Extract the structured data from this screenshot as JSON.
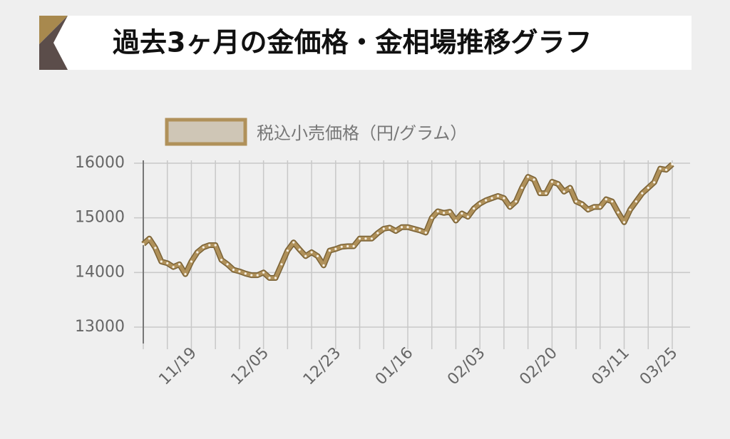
{
  "chart_data": {
    "type": "line",
    "title": "過去3ヶ月の金価格・金相場推移グラフ",
    "categories": [
      null,
      null,
      null,
      null,
      null,
      null,
      null,
      null,
      "11/19",
      null,
      null,
      null,
      null,
      null,
      null,
      null,
      null,
      null,
      null,
      null,
      "12/05",
      null,
      null,
      null,
      null,
      null,
      null,
      null,
      null,
      null,
      null,
      null,
      "12/23",
      null,
      null,
      null,
      null,
      null,
      null,
      null,
      null,
      null,
      null,
      null,
      "01/16",
      null,
      null,
      null,
      null,
      null,
      null,
      null,
      null,
      null,
      null,
      null,
      "02/03",
      null,
      null,
      null,
      null,
      null,
      null,
      null,
      null,
      null,
      null,
      null,
      "02/20",
      null,
      null,
      null,
      null,
      null,
      null,
      null,
      null,
      null,
      null,
      null,
      "03/11",
      null,
      null,
      null,
      null,
      null,
      null,
      null,
      "03/25"
    ],
    "series": [
      {
        "name": "税込小売価格（円/グラム）",
        "color": "#b0915a",
        "values": [
          14520,
          14620,
          14450,
          14200,
          14170,
          14100,
          14150,
          13970,
          14200,
          14370,
          14460,
          14500,
          14500,
          14230,
          14150,
          14050,
          14020,
          13980,
          13950,
          13950,
          14000,
          13900,
          13900,
          14150,
          14400,
          14550,
          14420,
          14300,
          14370,
          14300,
          14130,
          14400,
          14430,
          14470,
          14480,
          14480,
          14620,
          14620,
          14620,
          14720,
          14800,
          14820,
          14760,
          14830,
          14830,
          14800,
          14770,
          14730,
          15000,
          15120,
          15090,
          15110,
          14950,
          15080,
          15020,
          15170,
          15260,
          15320,
          15360,
          15400,
          15360,
          15200,
          15300,
          15550,
          15750,
          15700,
          15450,
          15450,
          15660,
          15620,
          15480,
          15550,
          15300,
          15250,
          15150,
          15200,
          15200,
          15340,
          15300,
          15100,
          14920,
          15150,
          15300,
          15450,
          15550,
          15650,
          15900,
          15880,
          15980
        ]
      }
    ],
    "ylim": [
      12700,
      16000
    ],
    "yticks": [
      13000,
      14000,
      15000,
      16000
    ],
    "grid": true
  }
}
